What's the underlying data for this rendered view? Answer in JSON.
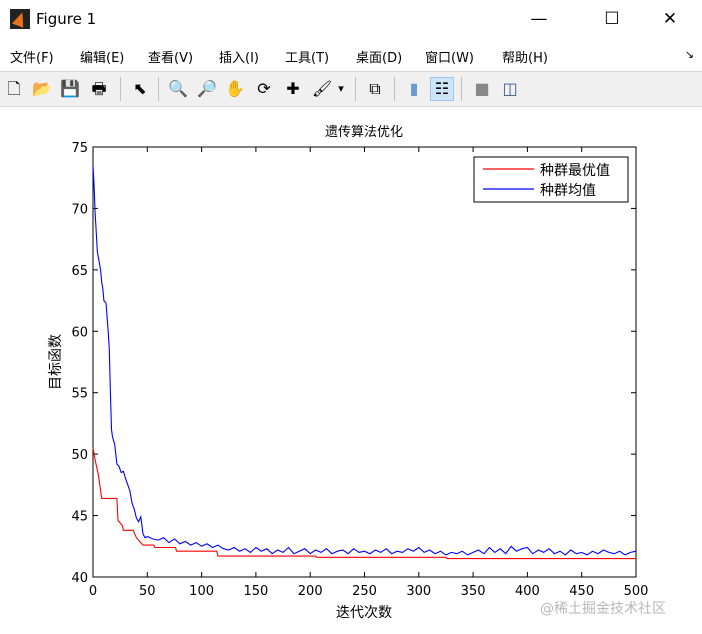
{
  "window": {
    "title": "Figure 1",
    "controls": {
      "minimize": "—",
      "maximize": "☐",
      "close": "✕"
    }
  },
  "menu": {
    "items": [
      "文件(F)",
      "编辑(E)",
      "查看(V)",
      "插入(I)",
      "工具(T)",
      "桌面(D)",
      "窗口(W)",
      "帮助(H)"
    ],
    "overflow": "↘"
  },
  "toolbar": {
    "items": [
      {
        "name": "new-figure-icon",
        "glyph": "🗋"
      },
      {
        "name": "open-file-icon",
        "glyph": "📂"
      },
      {
        "name": "save-icon",
        "glyph": "💾"
      },
      {
        "name": "print-icon",
        "glyph": "🖶"
      },
      {
        "name": "select-pointer-icon",
        "glyph": "⬉"
      },
      {
        "name": "zoom-in-icon",
        "glyph": "🔍"
      },
      {
        "name": "zoom-out-icon",
        "glyph": "🔎"
      },
      {
        "name": "pan-hand-icon",
        "glyph": "✋"
      },
      {
        "name": "rotate-3d-icon",
        "glyph": "⟳"
      },
      {
        "name": "data-cursor-icon",
        "glyph": "✚"
      },
      {
        "name": "brush-icon",
        "glyph": "🖌"
      },
      {
        "name": "link-plot-icon",
        "glyph": "⧉"
      },
      {
        "name": "colorbar-icon",
        "glyph": "▮"
      },
      {
        "name": "legend-icon",
        "glyph": "☷"
      },
      {
        "name": "hide-plot-tools-icon",
        "glyph": "■"
      },
      {
        "name": "show-plot-tools-icon",
        "glyph": "◫"
      }
    ],
    "brush_dropdown": "▾",
    "active": "legend-icon"
  },
  "watermark": "@稀土掘金技术社区",
  "chart_data": {
    "type": "line",
    "title": "遗传算法优化",
    "xlabel": "迭代次数",
    "ylabel": "目标函数",
    "xlim": [
      0,
      500
    ],
    "ylim": [
      40,
      75
    ],
    "xticks": [
      0,
      50,
      100,
      150,
      200,
      250,
      300,
      350,
      400,
      450,
      500
    ],
    "yticks": [
      40,
      45,
      50,
      55,
      60,
      65,
      70,
      75
    ],
    "grid": false,
    "legend": "top-right",
    "series": [
      {
        "name": "种群最优值",
        "color": "#ff0000",
        "x": [
          0,
          2,
          5,
          8,
          22,
          23,
          27,
          28,
          37,
          40,
          44,
          46,
          56,
          57,
          76,
          77,
          114,
          115,
          205,
          206,
          325,
          326,
          500
        ],
        "y": [
          50.5,
          49.5,
          48.3,
          46.4,
          46.4,
          44.6,
          44.2,
          43.8,
          43.8,
          43.2,
          42.8,
          42.6,
          42.6,
          42.4,
          42.4,
          42.1,
          42.1,
          41.7,
          41.7,
          41.6,
          41.6,
          41.5,
          41.5
        ]
      },
      {
        "name": "种群均值",
        "color": "#0000ff",
        "x": [
          0,
          1,
          2,
          3,
          4,
          5,
          6,
          7,
          8,
          9,
          10,
          12,
          14,
          15,
          16,
          17,
          18,
          20,
          22,
          24,
          26,
          28,
          30,
          32,
          34,
          36,
          38,
          40,
          42,
          44,
          46,
          48,
          50,
          55,
          60,
          65,
          70,
          75,
          80,
          85,
          90,
          95,
          100,
          105,
          110,
          115,
          120,
          125,
          130,
          135,
          140,
          145,
          150,
          155,
          160,
          165,
          170,
          175,
          180,
          185,
          190,
          195,
          200,
          205,
          210,
          215,
          220,
          225,
          230,
          235,
          240,
          245,
          250,
          255,
          260,
          265,
          270,
          275,
          280,
          285,
          290,
          295,
          300,
          305,
          310,
          315,
          320,
          325,
          330,
          335,
          340,
          345,
          350,
          355,
          360,
          365,
          370,
          375,
          380,
          385,
          390,
          395,
          400,
          405,
          410,
          415,
          420,
          425,
          430,
          435,
          440,
          445,
          450,
          455,
          460,
          465,
          470,
          475,
          480,
          485,
          490,
          495,
          500
        ],
        "y": [
          73.5,
          71.8,
          69.5,
          68,
          66.5,
          66,
          65.5,
          65,
          64,
          63.5,
          62.5,
          62.3,
          60,
          58.5,
          55,
          52,
          51.4,
          50.8,
          49.2,
          49,
          48.5,
          48.6,
          48,
          47.5,
          47,
          46,
          45.5,
          44.8,
          44.5,
          44.9,
          43.5,
          43.2,
          43.3,
          43.1,
          43.0,
          43.2,
          42.8,
          43.1,
          42.7,
          42.9,
          42.6,
          42.8,
          42.5,
          42.7,
          42.4,
          42.6,
          42.3,
          42.2,
          42.4,
          42.1,
          42.3,
          42.0,
          42.4,
          42.1,
          42.3,
          41.9,
          42.2,
          42.0,
          42.4,
          41.9,
          42.1,
          42.3,
          41.9,
          42.2,
          42.0,
          42.3,
          41.9,
          42.1,
          42.2,
          41.9,
          42.3,
          42.0,
          42.1,
          41.9,
          42.2,
          42.0,
          42.3,
          41.9,
          42.1,
          42.0,
          42.3,
          42.1,
          42.4,
          42.0,
          42.2,
          41.9,
          42.1,
          41.8,
          42.0,
          41.9,
          42.1,
          41.8,
          42.0,
          42.2,
          41.9,
          42.4,
          42.0,
          42.3,
          41.9,
          42.5,
          42.1,
          42.3,
          42.4,
          41.9,
          42.2,
          42.0,
          42.3,
          41.9,
          42.1,
          41.8,
          42.2,
          41.9,
          42.0,
          41.8,
          42.1,
          41.9,
          42.2,
          42.0,
          41.9,
          42.1,
          41.8,
          42.0,
          42.1
        ]
      }
    ]
  }
}
